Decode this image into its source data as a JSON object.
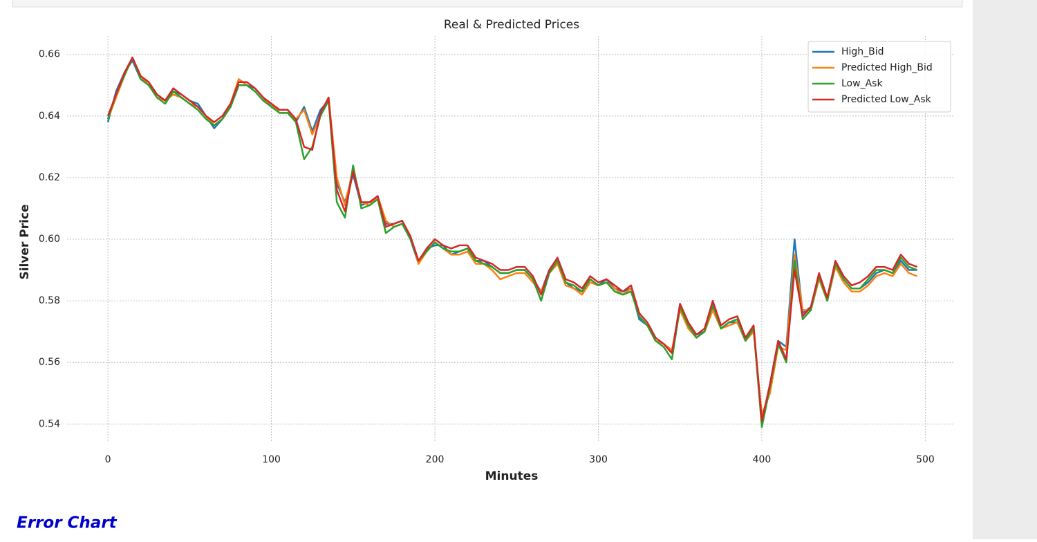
{
  "chart_data": {
    "type": "line",
    "title": "Real & Predicted Prices",
    "xlabel": "Minutes",
    "ylabel": "Silver Price",
    "xlim": [
      -25,
      518
    ],
    "ylim": [
      0.534,
      0.666
    ],
    "xticks": [
      0,
      100,
      200,
      300,
      400,
      500
    ],
    "yticks": [
      0.54,
      0.56,
      0.58,
      {
        "value": 0.6,
        "label": "0.60"
      },
      0.62,
      0.64,
      0.66
    ],
    "grid": true,
    "legend": "upper right",
    "x": [
      0,
      5,
      10,
      15,
      20,
      25,
      30,
      35,
      40,
      45,
      50,
      55,
      60,
      65,
      70,
      75,
      80,
      85,
      90,
      95,
      100,
      105,
      110,
      115,
      120,
      125,
      130,
      135,
      140,
      145,
      150,
      155,
      160,
      165,
      170,
      175,
      180,
      185,
      190,
      195,
      200,
      205,
      210,
      215,
      220,
      225,
      230,
      235,
      240,
      245,
      250,
      255,
      260,
      265,
      270,
      275,
      280,
      285,
      290,
      295,
      300,
      305,
      310,
      315,
      320,
      325,
      330,
      335,
      340,
      345,
      350,
      355,
      360,
      365,
      370,
      375,
      380,
      385,
      390,
      395,
      400,
      405,
      410,
      415,
      420,
      425,
      430,
      435,
      440,
      445,
      450,
      455,
      460,
      465,
      470,
      475,
      480,
      485,
      490,
      495
    ],
    "series": [
      {
        "name": "High_Bid",
        "color": "#1f77b4",
        "values": [
          0.638,
          0.648,
          0.654,
          0.658,
          0.652,
          0.65,
          0.647,
          0.645,
          0.648,
          0.647,
          0.645,
          0.644,
          0.64,
          0.636,
          0.639,
          0.643,
          0.65,
          0.65,
          0.649,
          0.646,
          0.643,
          0.642,
          0.642,
          0.638,
          0.643,
          0.635,
          0.642,
          0.645,
          0.618,
          0.612,
          0.621,
          0.611,
          0.612,
          0.614,
          0.605,
          0.605,
          0.606,
          0.6,
          0.592,
          0.597,
          0.598,
          0.598,
          0.595,
          0.596,
          0.597,
          0.593,
          0.593,
          0.591,
          0.589,
          0.589,
          0.59,
          0.59,
          0.587,
          0.583,
          0.59,
          0.592,
          0.586,
          0.584,
          0.583,
          0.587,
          0.585,
          0.587,
          0.584,
          0.583,
          0.584,
          0.574,
          0.572,
          0.567,
          0.566,
          0.563,
          0.579,
          0.572,
          0.569,
          0.57,
          0.578,
          0.571,
          0.573,
          0.573,
          0.567,
          0.571,
          0.54,
          0.553,
          0.567,
          0.565,
          0.6,
          0.576,
          0.578,
          0.588,
          0.58,
          0.592,
          0.587,
          0.584,
          0.584,
          0.586,
          0.589,
          0.59,
          0.589,
          0.593,
          0.59,
          0.59
        ]
      },
      {
        "name": "Predicted High_Bid",
        "color": "#ff7f0e",
        "values": [
          0.639,
          0.646,
          0.653,
          0.659,
          0.653,
          0.65,
          0.646,
          0.645,
          0.647,
          0.646,
          0.644,
          0.643,
          0.64,
          0.637,
          0.639,
          0.644,
          0.652,
          0.65,
          0.648,
          0.645,
          0.644,
          0.641,
          0.641,
          0.639,
          0.642,
          0.634,
          0.64,
          0.646,
          0.62,
          0.611,
          0.623,
          0.612,
          0.611,
          0.614,
          0.606,
          0.604,
          0.605,
          0.601,
          0.592,
          0.596,
          0.599,
          0.597,
          0.595,
          0.595,
          0.596,
          0.592,
          0.592,
          0.59,
          0.587,
          0.588,
          0.589,
          0.589,
          0.586,
          0.583,
          0.589,
          0.592,
          0.585,
          0.584,
          0.582,
          0.586,
          0.585,
          0.586,
          0.584,
          0.582,
          0.584,
          0.575,
          0.572,
          0.567,
          0.566,
          0.564,
          0.577,
          0.571,
          0.568,
          0.57,
          0.577,
          0.571,
          0.572,
          0.573,
          0.567,
          0.57,
          0.543,
          0.55,
          0.565,
          0.564,
          0.595,
          0.577,
          0.577,
          0.587,
          0.58,
          0.591,
          0.586,
          0.583,
          0.583,
          0.585,
          0.588,
          0.589,
          0.588,
          0.592,
          0.589,
          0.588
        ]
      },
      {
        "name": "Low_Ask",
        "color": "#2ca02c",
        "values": [
          0.639,
          0.647,
          0.653,
          0.659,
          0.652,
          0.65,
          0.646,
          0.644,
          0.648,
          0.646,
          0.644,
          0.642,
          0.639,
          0.637,
          0.639,
          0.643,
          0.65,
          0.65,
          0.648,
          0.645,
          0.643,
          0.641,
          0.641,
          0.638,
          0.626,
          0.63,
          0.64,
          0.645,
          0.612,
          0.607,
          0.624,
          0.61,
          0.611,
          0.613,
          0.602,
          0.604,
          0.605,
          0.6,
          0.593,
          0.596,
          0.599,
          0.597,
          0.596,
          0.596,
          0.597,
          0.593,
          0.592,
          0.591,
          0.589,
          0.589,
          0.59,
          0.59,
          0.587,
          0.58,
          0.589,
          0.593,
          0.586,
          0.585,
          0.583,
          0.587,
          0.585,
          0.586,
          0.583,
          0.582,
          0.583,
          0.575,
          0.572,
          0.567,
          0.565,
          0.561,
          0.578,
          0.572,
          0.568,
          0.57,
          0.579,
          0.571,
          0.573,
          0.574,
          0.567,
          0.571,
          0.539,
          0.552,
          0.566,
          0.56,
          0.593,
          0.574,
          0.577,
          0.588,
          0.58,
          0.592,
          0.587,
          0.584,
          0.584,
          0.587,
          0.59,
          0.59,
          0.589,
          0.594,
          0.591,
          0.59
        ]
      },
      {
        "name": "Predicted Low_Ask",
        "color": "#d62728",
        "values": [
          0.64,
          0.647,
          0.654,
          0.659,
          0.653,
          0.651,
          0.647,
          0.645,
          0.649,
          0.647,
          0.645,
          0.643,
          0.64,
          0.638,
          0.64,
          0.644,
          0.651,
          0.651,
          0.649,
          0.646,
          0.644,
          0.642,
          0.642,
          0.639,
          0.63,
          0.629,
          0.641,
          0.646,
          0.616,
          0.609,
          0.622,
          0.612,
          0.612,
          0.614,
          0.604,
          0.605,
          0.606,
          0.601,
          0.593,
          0.597,
          0.6,
          0.598,
          0.597,
          0.598,
          0.598,
          0.594,
          0.593,
          0.592,
          0.59,
          0.59,
          0.591,
          0.591,
          0.588,
          0.582,
          0.59,
          0.594,
          0.587,
          0.586,
          0.584,
          0.588,
          0.586,
          0.587,
          0.585,
          0.583,
          0.585,
          0.576,
          0.573,
          0.568,
          0.566,
          0.563,
          0.579,
          0.573,
          0.569,
          0.571,
          0.58,
          0.572,
          0.574,
          0.575,
          0.568,
          0.572,
          0.541,
          0.553,
          0.567,
          0.561,
          0.59,
          0.575,
          0.578,
          0.589,
          0.581,
          0.593,
          0.588,
          0.585,
          0.586,
          0.588,
          0.591,
          0.591,
          0.59,
          0.595,
          0.592,
          0.591
        ]
      }
    ]
  },
  "page": {
    "heading": "Error Chart"
  }
}
